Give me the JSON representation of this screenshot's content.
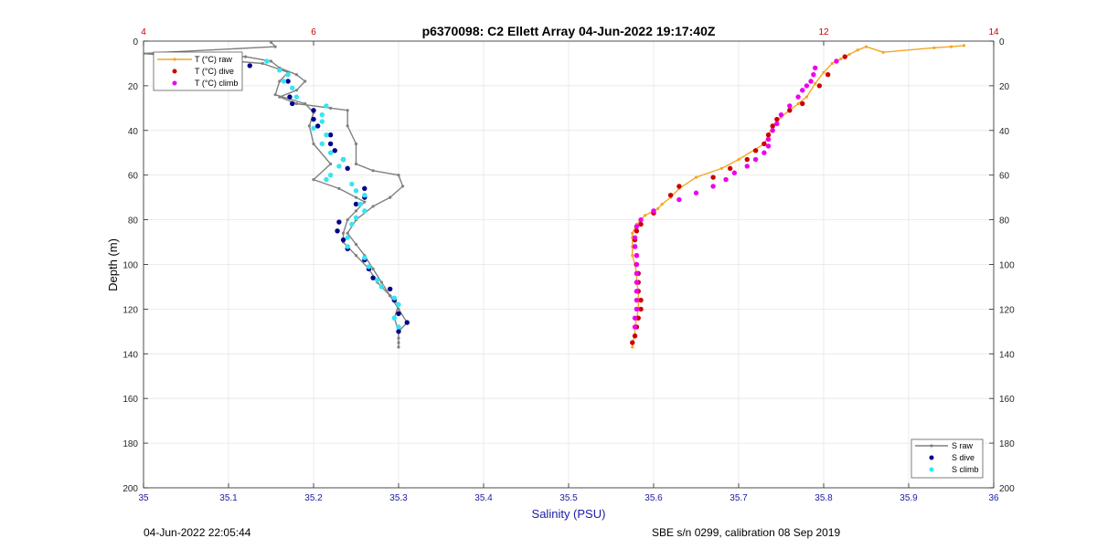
{
  "footer": {
    "left": "04-Jun-2022 22:05:44",
    "right": "SBE s/n 0299, calibration 08 Sep 2019"
  },
  "colors": {
    "S_raw": "#808080",
    "S_dive": "#00008b",
    "S_climb": "#33e6f2",
    "T_raw": "#f5a623",
    "T_dive": "#cc0000",
    "T_climb": "#ee00ee",
    "axis_bottom": "#1a1aa6",
    "axis_top": "#cc0000"
  },
  "chart_data": {
    "type": "line",
    "title": "p6370098: C2 Ellett Array 04-Jun-2022 19:17:40Z",
    "xlabel": "Salinity (PSU)",
    "ylabel": "Depth (m)",
    "xlim": [
      35,
      36
    ],
    "xticks": [
      "35",
      "35.1",
      "35.2",
      "35.3",
      "35.4",
      "35.5",
      "35.6",
      "35.7",
      "35.8",
      "35.9",
      "36"
    ],
    "x2lim": [
      4,
      14
    ],
    "x2ticks": [
      "4",
      "6",
      "12",
      "14"
    ],
    "ylim": [
      0,
      200
    ],
    "yticks": [
      "0",
      "20",
      "40",
      "60",
      "80",
      "100",
      "120",
      "140",
      "160",
      "180",
      "200"
    ],
    "y_reversed": true,
    "grid": true,
    "legend_T": {
      "placement": "top-left",
      "entries": [
        "T (°C) raw",
        "T (°C) dive",
        "T (°C) climb"
      ]
    },
    "legend_S": {
      "placement": "bottom-right",
      "entries": [
        "S raw",
        "S dive",
        "S climb"
      ]
    },
    "series": [
      {
        "name": "S raw",
        "axis": "bottom",
        "style": "line-marker",
        "points": [
          [
            35.15,
            0.5
          ],
          [
            35.155,
            2.5
          ],
          [
            35.0,
            5.5
          ],
          [
            35.12,
            7
          ],
          [
            35.15,
            9
          ],
          [
            35.16,
            12
          ],
          [
            35.18,
            15
          ],
          [
            35.19,
            18
          ],
          [
            35.18,
            22
          ],
          [
            35.16,
            25
          ],
          [
            35.18,
            28
          ],
          [
            35.22,
            30
          ],
          [
            35.24,
            31
          ],
          [
            35.24,
            38
          ],
          [
            35.25,
            46
          ],
          [
            35.25,
            55
          ],
          [
            35.27,
            58
          ],
          [
            35.3,
            60
          ],
          [
            35.305,
            65
          ],
          [
            35.29,
            70
          ],
          [
            35.27,
            74
          ],
          [
            35.25,
            80
          ],
          [
            35.24,
            86
          ],
          [
            35.25,
            91
          ],
          [
            35.26,
            96
          ],
          [
            35.27,
            102
          ],
          [
            35.28,
            108
          ],
          [
            35.29,
            114
          ],
          [
            35.3,
            120
          ],
          [
            35.31,
            126
          ],
          [
            35.3,
            130
          ],
          [
            35.3,
            133
          ],
          [
            35.3,
            135
          ],
          [
            35.3,
            137
          ]
        ]
      },
      {
        "name": "S raw",
        "axis": "bottom",
        "style": "line-marker",
        "points": [
          [
            35.0,
            5.6
          ],
          [
            35.14,
            10
          ],
          [
            35.17,
            14
          ],
          [
            35.16,
            18
          ],
          [
            35.155,
            24
          ],
          [
            35.19,
            28
          ],
          [
            35.2,
            32
          ],
          [
            35.195,
            38
          ],
          [
            35.2,
            46
          ],
          [
            35.22,
            55
          ],
          [
            35.2,
            62
          ],
          [
            35.23,
            66
          ],
          [
            35.25,
            70
          ],
          [
            35.26,
            72
          ],
          [
            35.25,
            76
          ],
          [
            35.24,
            80
          ],
          [
            35.235,
            86
          ],
          [
            35.235,
            90
          ],
          [
            35.25,
            96
          ],
          [
            35.265,
            102
          ],
          [
            35.275,
            108
          ],
          [
            35.29,
            114
          ],
          [
            35.3,
            118
          ],
          [
            35.295,
            124
          ],
          [
            35.3,
            130
          ]
        ]
      },
      {
        "name": "S dive",
        "axis": "bottom",
        "style": "marker",
        "points": [
          [
            35.125,
            11
          ],
          [
            35.17,
            18
          ],
          [
            35.172,
            25
          ],
          [
            35.175,
            28
          ],
          [
            35.2,
            31
          ],
          [
            35.2,
            35
          ],
          [
            35.205,
            38
          ],
          [
            35.22,
            42
          ],
          [
            35.22,
            46
          ],
          [
            35.225,
            49
          ],
          [
            35.235,
            53
          ],
          [
            35.24,
            57
          ],
          [
            35.26,
            66
          ],
          [
            35.26,
            70
          ],
          [
            35.25,
            73
          ],
          [
            35.23,
            81
          ],
          [
            35.228,
            85
          ],
          [
            35.235,
            89
          ],
          [
            35.24,
            93
          ],
          [
            35.26,
            98
          ],
          [
            35.265,
            102
          ],
          [
            35.27,
            106
          ],
          [
            35.29,
            111
          ],
          [
            35.295,
            116
          ],
          [
            35.3,
            122
          ],
          [
            35.31,
            126
          ],
          [
            35.3,
            130
          ]
        ]
      },
      {
        "name": "S climb",
        "axis": "bottom",
        "style": "marker",
        "points": [
          [
            35.145,
            9
          ],
          [
            35.16,
            13
          ],
          [
            35.17,
            15
          ],
          [
            35.165,
            18
          ],
          [
            35.175,
            21
          ],
          [
            35.18,
            25
          ],
          [
            35.215,
            29
          ],
          [
            35.21,
            33
          ],
          [
            35.21,
            36
          ],
          [
            35.2,
            39
          ],
          [
            35.215,
            42
          ],
          [
            35.21,
            46
          ],
          [
            35.22,
            50
          ],
          [
            35.235,
            53
          ],
          [
            35.23,
            56
          ],
          [
            35.22,
            60
          ],
          [
            35.215,
            62
          ],
          [
            35.245,
            64
          ],
          [
            35.25,
            67
          ],
          [
            35.26,
            69
          ],
          [
            35.255,
            73
          ],
          [
            35.26,
            76
          ],
          [
            35.25,
            79
          ],
          [
            35.245,
            82
          ],
          [
            35.24,
            88
          ],
          [
            35.24,
            92
          ],
          [
            35.26,
            97
          ],
          [
            35.265,
            101
          ],
          [
            35.275,
            107
          ],
          [
            35.28,
            110
          ],
          [
            35.295,
            115
          ],
          [
            35.3,
            118
          ],
          [
            35.295,
            124
          ],
          [
            35.3,
            128
          ]
        ]
      },
      {
        "name": "T (°C) raw",
        "axis": "top",
        "style": "line-marker",
        "points": [
          [
            13.65,
            2
          ],
          [
            13.5,
            2.5
          ],
          [
            13.3,
            3
          ],
          [
            12.7,
            5
          ],
          [
            12.5,
            2.5
          ],
          [
            12.4,
            4
          ],
          [
            12.3,
            6
          ],
          [
            12.2,
            8
          ],
          [
            12.1,
            10
          ],
          [
            12.0,
            14
          ],
          [
            11.9,
            19
          ],
          [
            11.8,
            25
          ],
          [
            11.7,
            28
          ],
          [
            11.6,
            31
          ],
          [
            11.5,
            34
          ],
          [
            11.4,
            38
          ],
          [
            11.3,
            46
          ],
          [
            11.0,
            53
          ],
          [
            10.8,
            57
          ],
          [
            10.5,
            61
          ],
          [
            10.3,
            66
          ],
          [
            10.2,
            70
          ],
          [
            10.1,
            73
          ],
          [
            10.05,
            75
          ],
          [
            9.9,
            78
          ],
          [
            9.8,
            82
          ],
          [
            9.75,
            86
          ],
          [
            9.75,
            88
          ],
          [
            9.75,
            92
          ],
          [
            9.75,
            96
          ],
          [
            9.78,
            100
          ],
          [
            9.8,
            104
          ],
          [
            9.8,
            108
          ],
          [
            9.82,
            112
          ],
          [
            9.82,
            116
          ],
          [
            9.82,
            120
          ],
          [
            9.8,
            124
          ],
          [
            9.78,
            128
          ],
          [
            9.78,
            132
          ],
          [
            9.75,
            135
          ],
          [
            9.75,
            137
          ]
        ]
      },
      {
        "name": "T (°C) dive",
        "axis": "top",
        "style": "marker",
        "points": [
          [
            12.25,
            7
          ],
          [
            12.05,
            15
          ],
          [
            11.95,
            20
          ],
          [
            11.75,
            28
          ],
          [
            11.6,
            31
          ],
          [
            11.45,
            35
          ],
          [
            11.4,
            38
          ],
          [
            11.35,
            42
          ],
          [
            11.3,
            46
          ],
          [
            11.2,
            49
          ],
          [
            11.1,
            53
          ],
          [
            10.9,
            57
          ],
          [
            10.7,
            61
          ],
          [
            10.3,
            65
          ],
          [
            10.2,
            69
          ],
          [
            10.0,
            77
          ],
          [
            9.85,
            82
          ],
          [
            9.8,
            85
          ],
          [
            9.78,
            89
          ],
          [
            9.78,
            92
          ],
          [
            9.8,
            96
          ],
          [
            9.8,
            100
          ],
          [
            9.82,
            104
          ],
          [
            9.82,
            108
          ],
          [
            9.82,
            112
          ],
          [
            9.85,
            116
          ],
          [
            9.85,
            120
          ],
          [
            9.82,
            124
          ],
          [
            9.8,
            128
          ],
          [
            9.78,
            132
          ],
          [
            9.75,
            135
          ]
        ]
      },
      {
        "name": "T (°C) climb",
        "axis": "top",
        "style": "marker",
        "points": [
          [
            12.15,
            9
          ],
          [
            11.9,
            12
          ],
          [
            11.88,
            15
          ],
          [
            11.85,
            18
          ],
          [
            11.8,
            20
          ],
          [
            11.75,
            22
          ],
          [
            11.7,
            25
          ],
          [
            11.6,
            29
          ],
          [
            11.5,
            33
          ],
          [
            11.45,
            37
          ],
          [
            11.4,
            40
          ],
          [
            11.35,
            44
          ],
          [
            11.35,
            47
          ],
          [
            11.3,
            50
          ],
          [
            11.2,
            53
          ],
          [
            11.1,
            56
          ],
          [
            10.95,
            59
          ],
          [
            10.85,
            62
          ],
          [
            10.7,
            65
          ],
          [
            10.5,
            68
          ],
          [
            10.3,
            71
          ],
          [
            10.0,
            76
          ],
          [
            9.85,
            80
          ],
          [
            9.8,
            83
          ],
          [
            9.78,
            88
          ],
          [
            9.78,
            92
          ],
          [
            9.8,
            96
          ],
          [
            9.8,
            100
          ],
          [
            9.8,
            104
          ],
          [
            9.8,
            108
          ],
          [
            9.8,
            112
          ],
          [
            9.8,
            116
          ],
          [
            9.8,
            120
          ],
          [
            9.78,
            124
          ],
          [
            9.78,
            128
          ]
        ]
      }
    ]
  }
}
